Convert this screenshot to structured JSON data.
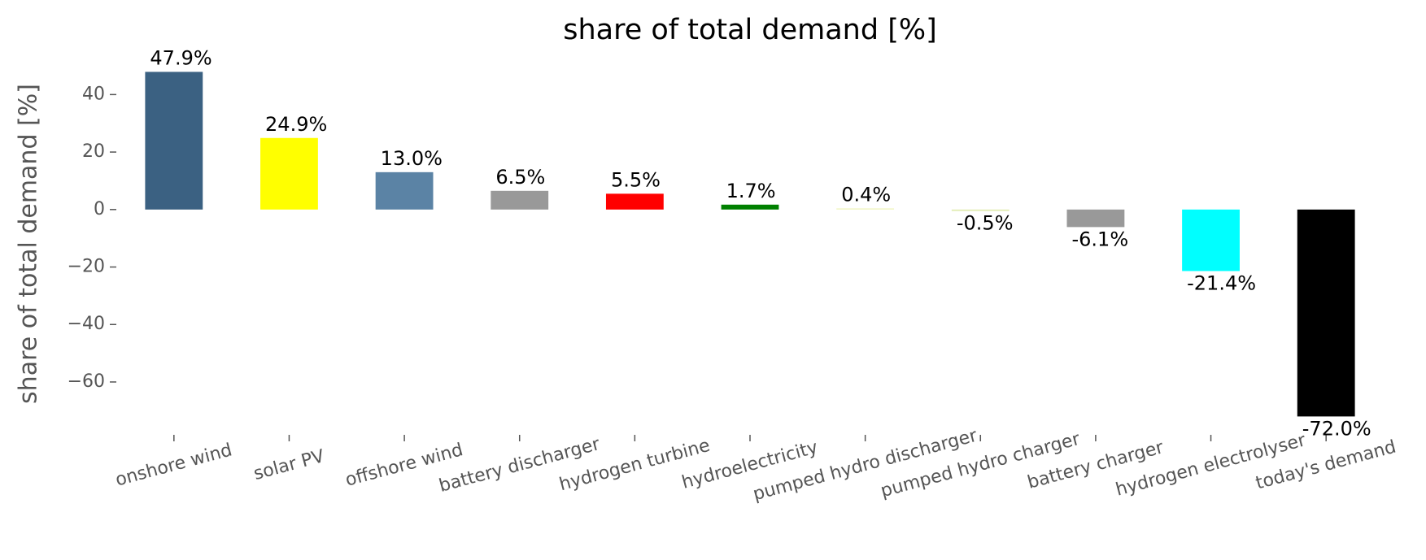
{
  "chart_data": {
    "type": "bar",
    "title": "share of total demand [%]",
    "ylabel": "share of total demand [%]",
    "categories": [
      "onshore wind",
      "solar PV",
      "offshore wind",
      "battery discharger",
      "hydrogen turbine",
      "hydroelectricity",
      "pumped hydro discharger",
      "pumped hydro charger",
      "battery charger",
      "hydrogen electrolyser",
      "today's demand"
    ],
    "values": [
      47.9,
      24.9,
      13.0,
      6.5,
      5.5,
      1.7,
      0.4,
      -0.5,
      -6.1,
      -21.4,
      -72.0
    ],
    "value_labels": [
      "47.9%",
      "24.9%",
      "13.0%",
      "6.5%",
      "5.5%",
      "1.7%",
      "0.4%",
      "-0.5%",
      "-6.1%",
      "-21.4%",
      "-72.0%"
    ],
    "colors": [
      "#3b6182",
      "#ffff00",
      "#5b83a5",
      "#999999",
      "#ff0000",
      "#008000",
      "#f0f5c0",
      "#e0ecb0",
      "#999999",
      "#00ffff",
      "#000000"
    ],
    "ylim": [
      -75,
      50
    ],
    "yticks": [
      {
        "value": -60,
        "label": "−60"
      },
      {
        "value": -40,
        "label": "−40"
      },
      {
        "value": -20,
        "label": "−20"
      },
      0,
      20,
      40
    ],
    "grid": false
  }
}
